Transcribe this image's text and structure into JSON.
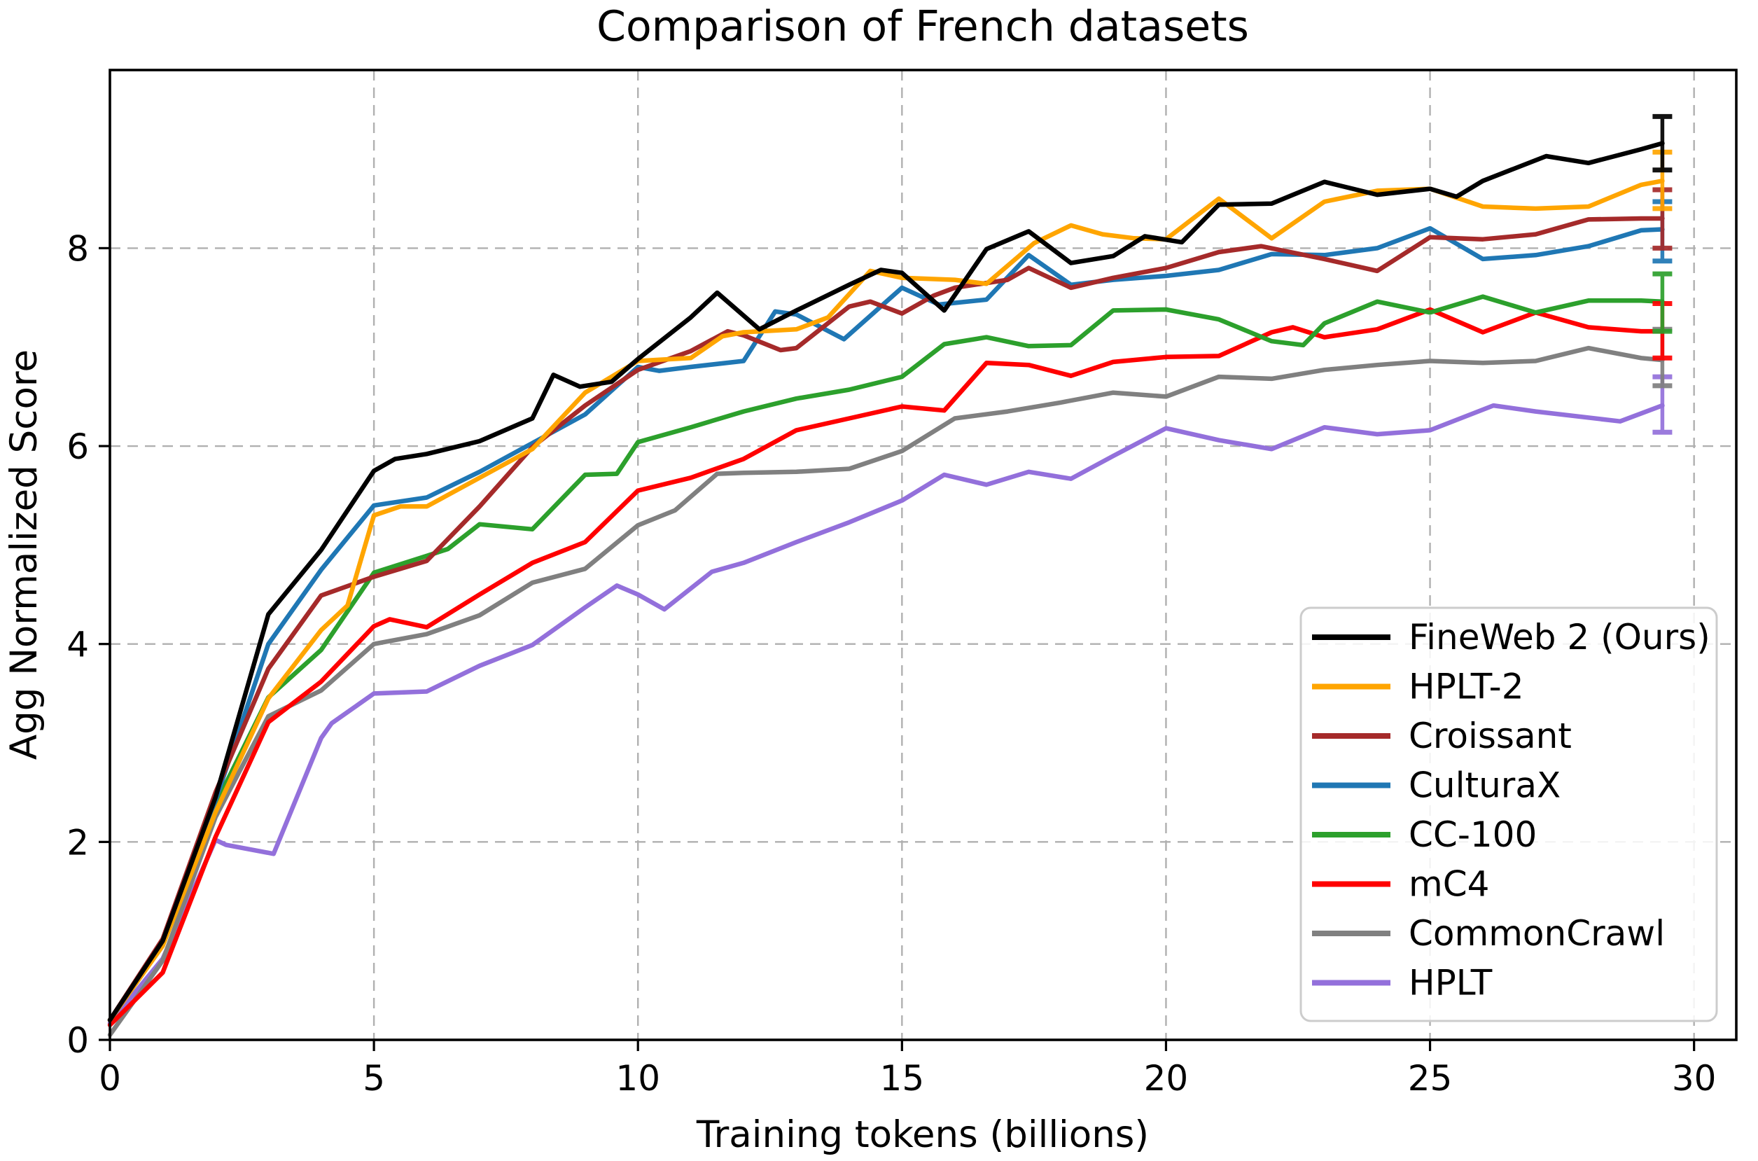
{
  "chart_data": {
    "type": "line",
    "title": "Comparison of French datasets",
    "xlabel": "Training tokens (billions)",
    "ylabel": "Agg Normalized Score",
    "xlim": [
      0,
      30.8
    ],
    "ylim": [
      0,
      9.8
    ],
    "xticks": [
      0,
      5,
      10,
      15,
      20,
      25,
      30
    ],
    "yticks": [
      0,
      2,
      4,
      6,
      8
    ],
    "grid": true,
    "grid_color": "#b0b0b0",
    "legend_position": "lower right",
    "series": [
      {
        "name": "FineWeb 2 (Ours)",
        "color": "#000000",
        "err_plus": 0.27,
        "err_minus": 0.27,
        "points": [
          [
            0,
            0.2
          ],
          [
            1,
            1.0
          ],
          [
            2,
            2.45
          ],
          [
            3,
            4.3
          ],
          [
            4,
            4.95
          ],
          [
            5,
            5.75
          ],
          [
            5.4,
            5.87
          ],
          [
            6,
            5.92
          ],
          [
            7,
            6.05
          ],
          [
            8,
            6.28
          ],
          [
            8.4,
            6.72
          ],
          [
            8.9,
            6.6
          ],
          [
            9.5,
            6.65
          ],
          [
            10,
            6.88
          ],
          [
            11,
            7.3
          ],
          [
            11.5,
            7.55
          ],
          [
            12.3,
            7.18
          ],
          [
            13,
            7.37
          ],
          [
            14,
            7.63
          ],
          [
            14.6,
            7.78
          ],
          [
            15,
            7.75
          ],
          [
            15.8,
            7.37
          ],
          [
            16.6,
            7.99
          ],
          [
            17.4,
            8.17
          ],
          [
            18.2,
            7.85
          ],
          [
            19,
            7.92
          ],
          [
            19.6,
            8.12
          ],
          [
            20.3,
            8.06
          ],
          [
            21,
            8.44
          ],
          [
            22,
            8.45
          ],
          [
            23,
            8.67
          ],
          [
            24,
            8.54
          ],
          [
            25,
            8.6
          ],
          [
            25.5,
            8.52
          ],
          [
            26,
            8.68
          ],
          [
            27.2,
            8.93
          ],
          [
            28,
            8.86
          ],
          [
            29,
            9.0
          ],
          [
            29.4,
            9.06
          ]
        ]
      },
      {
        "name": "HPLT-2",
        "color": "#FFA500",
        "err_plus": 0.29,
        "err_minus": 0.28,
        "points": [
          [
            0,
            0.2
          ],
          [
            1,
            0.95
          ],
          [
            2,
            2.3
          ],
          [
            3,
            3.45
          ],
          [
            4,
            4.14
          ],
          [
            4.5,
            4.39
          ],
          [
            5,
            5.3
          ],
          [
            5.5,
            5.39
          ],
          [
            6,
            5.39
          ],
          [
            7,
            5.68
          ],
          [
            8,
            5.97
          ],
          [
            9,
            6.54
          ],
          [
            10,
            6.86
          ],
          [
            11,
            6.89
          ],
          [
            11.6,
            7.11
          ],
          [
            12,
            7.15
          ],
          [
            13,
            7.18
          ],
          [
            13.6,
            7.3
          ],
          [
            14.4,
            7.77
          ],
          [
            15,
            7.7
          ],
          [
            16,
            7.68
          ],
          [
            16.6,
            7.64
          ],
          [
            17.5,
            8.05
          ],
          [
            18.2,
            8.23
          ],
          [
            18.8,
            8.14
          ],
          [
            19.4,
            8.1
          ],
          [
            20,
            8.09
          ],
          [
            21,
            8.5
          ],
          [
            22,
            8.1
          ],
          [
            23,
            8.47
          ],
          [
            24,
            8.58
          ],
          [
            25,
            8.6
          ],
          [
            26,
            8.42
          ],
          [
            27,
            8.4
          ],
          [
            28,
            8.42
          ],
          [
            29,
            8.64
          ],
          [
            29.4,
            8.68
          ]
        ]
      },
      {
        "name": "Croissant",
        "color": "#A52A2A",
        "err_plus": 0.29,
        "err_minus": 0.3,
        "points": [
          [
            0,
            0.2
          ],
          [
            1,
            1.02
          ],
          [
            2,
            2.5
          ],
          [
            3,
            3.75
          ],
          [
            4,
            4.49
          ],
          [
            5,
            4.68
          ],
          [
            6,
            4.84
          ],
          [
            7,
            5.39
          ],
          [
            8,
            5.99
          ],
          [
            9,
            6.41
          ],
          [
            10,
            6.77
          ],
          [
            11,
            6.96
          ],
          [
            11.7,
            7.16
          ],
          [
            12,
            7.12
          ],
          [
            12.7,
            6.97
          ],
          [
            13,
            6.99
          ],
          [
            14,
            7.41
          ],
          [
            14.4,
            7.46
          ],
          [
            15,
            7.34
          ],
          [
            15.6,
            7.52
          ],
          [
            16,
            7.6
          ],
          [
            17,
            7.68
          ],
          [
            17.4,
            7.8
          ],
          [
            18.2,
            7.6
          ],
          [
            19,
            7.7
          ],
          [
            20,
            7.8
          ],
          [
            21,
            7.96
          ],
          [
            21.8,
            8.02
          ],
          [
            23,
            7.89
          ],
          [
            24,
            7.77
          ],
          [
            25,
            8.11
          ],
          [
            26,
            8.09
          ],
          [
            27,
            8.14
          ],
          [
            28,
            8.29
          ],
          [
            29,
            8.3
          ],
          [
            29.4,
            8.3
          ]
        ]
      },
      {
        "name": "CulturaX",
        "color": "#1F77B4",
        "err_plus": 0.28,
        "err_minus": 0.32,
        "points": [
          [
            0,
            0.2
          ],
          [
            1,
            0.97
          ],
          [
            2,
            2.42
          ],
          [
            3,
            4.0
          ],
          [
            4,
            4.75
          ],
          [
            5,
            5.4
          ],
          [
            6,
            5.48
          ],
          [
            7,
            5.74
          ],
          [
            8,
            6.03
          ],
          [
            9,
            6.32
          ],
          [
            10,
            6.8
          ],
          [
            10.4,
            6.76
          ],
          [
            11,
            6.8
          ],
          [
            12,
            6.86
          ],
          [
            12.6,
            7.36
          ],
          [
            13,
            7.33
          ],
          [
            13.9,
            7.08
          ],
          [
            15,
            7.6
          ],
          [
            15.7,
            7.43
          ],
          [
            16.6,
            7.48
          ],
          [
            17.4,
            7.93
          ],
          [
            18.2,
            7.63
          ],
          [
            19,
            7.68
          ],
          [
            20,
            7.72
          ],
          [
            21,
            7.78
          ],
          [
            22,
            7.94
          ],
          [
            23,
            7.93
          ],
          [
            24,
            8.0
          ],
          [
            25,
            8.2
          ],
          [
            26,
            7.89
          ],
          [
            27,
            7.93
          ],
          [
            28,
            8.02
          ],
          [
            29,
            8.18
          ],
          [
            29.4,
            8.19
          ]
        ]
      },
      {
        "name": "CC-100",
        "color": "#2CA02C",
        "err_plus": 0.28,
        "err_minus": 0.3,
        "points": [
          [
            0,
            0.2
          ],
          [
            1,
            0.96
          ],
          [
            2,
            2.38
          ],
          [
            3,
            3.46
          ],
          [
            4,
            3.94
          ],
          [
            5,
            4.72
          ],
          [
            6,
            4.89
          ],
          [
            6.4,
            4.96
          ],
          [
            7,
            5.21
          ],
          [
            8,
            5.16
          ],
          [
            9,
            5.71
          ],
          [
            9.6,
            5.72
          ],
          [
            10,
            6.04
          ],
          [
            11,
            6.19
          ],
          [
            12,
            6.35
          ],
          [
            13,
            6.48
          ],
          [
            14,
            6.57
          ],
          [
            15,
            6.7
          ],
          [
            15.8,
            7.03
          ],
          [
            16.6,
            7.1
          ],
          [
            17.4,
            7.01
          ],
          [
            18.2,
            7.02
          ],
          [
            19,
            7.37
          ],
          [
            20,
            7.38
          ],
          [
            21,
            7.28
          ],
          [
            22,
            7.06
          ],
          [
            22.6,
            7.02
          ],
          [
            23,
            7.24
          ],
          [
            24,
            7.46
          ],
          [
            25,
            7.35
          ],
          [
            26,
            7.51
          ],
          [
            27,
            7.35
          ],
          [
            28,
            7.47
          ],
          [
            29,
            7.47
          ],
          [
            29.4,
            7.46
          ]
        ]
      },
      {
        "name": "mC4",
        "color": "#FF0000",
        "err_plus": 0.28,
        "err_minus": 0.27,
        "points": [
          [
            0,
            0.15
          ],
          [
            1,
            0.68
          ],
          [
            2,
            2.05
          ],
          [
            3,
            3.21
          ],
          [
            4,
            3.62
          ],
          [
            5,
            4.18
          ],
          [
            5.3,
            4.25
          ],
          [
            6,
            4.17
          ],
          [
            7,
            4.5
          ],
          [
            8,
            4.82
          ],
          [
            9,
            5.03
          ],
          [
            10,
            5.55
          ],
          [
            11,
            5.68
          ],
          [
            12,
            5.87
          ],
          [
            13,
            6.16
          ],
          [
            14,
            6.28
          ],
          [
            15,
            6.4
          ],
          [
            15.8,
            6.36
          ],
          [
            16.6,
            6.84
          ],
          [
            17.4,
            6.82
          ],
          [
            18.2,
            6.71
          ],
          [
            19,
            6.85
          ],
          [
            20,
            6.9
          ],
          [
            21,
            6.91
          ],
          [
            22,
            7.15
          ],
          [
            22.4,
            7.2
          ],
          [
            23,
            7.1
          ],
          [
            24,
            7.18
          ],
          [
            25,
            7.38
          ],
          [
            26,
            7.15
          ],
          [
            27,
            7.35
          ],
          [
            28,
            7.2
          ],
          [
            29,
            7.16
          ],
          [
            29.4,
            7.16
          ]
        ]
      },
      {
        "name": "CommonCrawl",
        "color": "#808080",
        "err_plus": 0.31,
        "err_minus": 0.26,
        "points": [
          [
            0,
            0.05
          ],
          [
            1,
            0.8
          ],
          [
            2,
            2.25
          ],
          [
            3,
            3.27
          ],
          [
            4,
            3.53
          ],
          [
            5,
            4.0
          ],
          [
            6,
            4.1
          ],
          [
            7,
            4.29
          ],
          [
            8,
            4.62
          ],
          [
            9,
            4.76
          ],
          [
            10,
            5.2
          ],
          [
            10.7,
            5.35
          ],
          [
            11.5,
            5.72
          ],
          [
            12,
            5.73
          ],
          [
            13,
            5.74
          ],
          [
            14,
            5.77
          ],
          [
            15,
            5.95
          ],
          [
            16,
            6.28
          ],
          [
            17,
            6.35
          ],
          [
            18,
            6.44
          ],
          [
            19,
            6.54
          ],
          [
            20,
            6.5
          ],
          [
            21,
            6.7
          ],
          [
            22,
            6.68
          ],
          [
            23,
            6.77
          ],
          [
            24,
            6.82
          ],
          [
            25,
            6.86
          ],
          [
            26,
            6.84
          ],
          [
            27,
            6.86
          ],
          [
            28,
            6.99
          ],
          [
            29,
            6.89
          ],
          [
            29.4,
            6.87
          ]
        ]
      },
      {
        "name": "HPLT",
        "color": "#9370DB",
        "err_plus": 0.29,
        "err_minus": 0.27,
        "points": [
          [
            0,
            0.17
          ],
          [
            1,
            0.82
          ],
          [
            2,
            2.02
          ],
          [
            2.2,
            1.97
          ],
          [
            3.1,
            1.88
          ],
          [
            4,
            3.05
          ],
          [
            4.2,
            3.2
          ],
          [
            5,
            3.5
          ],
          [
            6,
            3.52
          ],
          [
            7,
            3.78
          ],
          [
            8,
            3.99
          ],
          [
            9,
            4.37
          ],
          [
            9.6,
            4.59
          ],
          [
            10,
            4.5
          ],
          [
            10.5,
            4.35
          ],
          [
            11.4,
            4.73
          ],
          [
            12,
            4.82
          ],
          [
            13,
            5.03
          ],
          [
            14,
            5.23
          ],
          [
            15,
            5.45
          ],
          [
            15.8,
            5.71
          ],
          [
            16.6,
            5.61
          ],
          [
            17.4,
            5.74
          ],
          [
            18.2,
            5.67
          ],
          [
            19,
            5.9
          ],
          [
            20,
            6.18
          ],
          [
            21,
            6.06
          ],
          [
            22,
            5.97
          ],
          [
            23,
            6.19
          ],
          [
            24,
            6.12
          ],
          [
            25,
            6.16
          ],
          [
            26.2,
            6.41
          ],
          [
            27,
            6.35
          ],
          [
            28.6,
            6.25
          ],
          [
            29.4,
            6.41
          ]
        ]
      }
    ]
  }
}
